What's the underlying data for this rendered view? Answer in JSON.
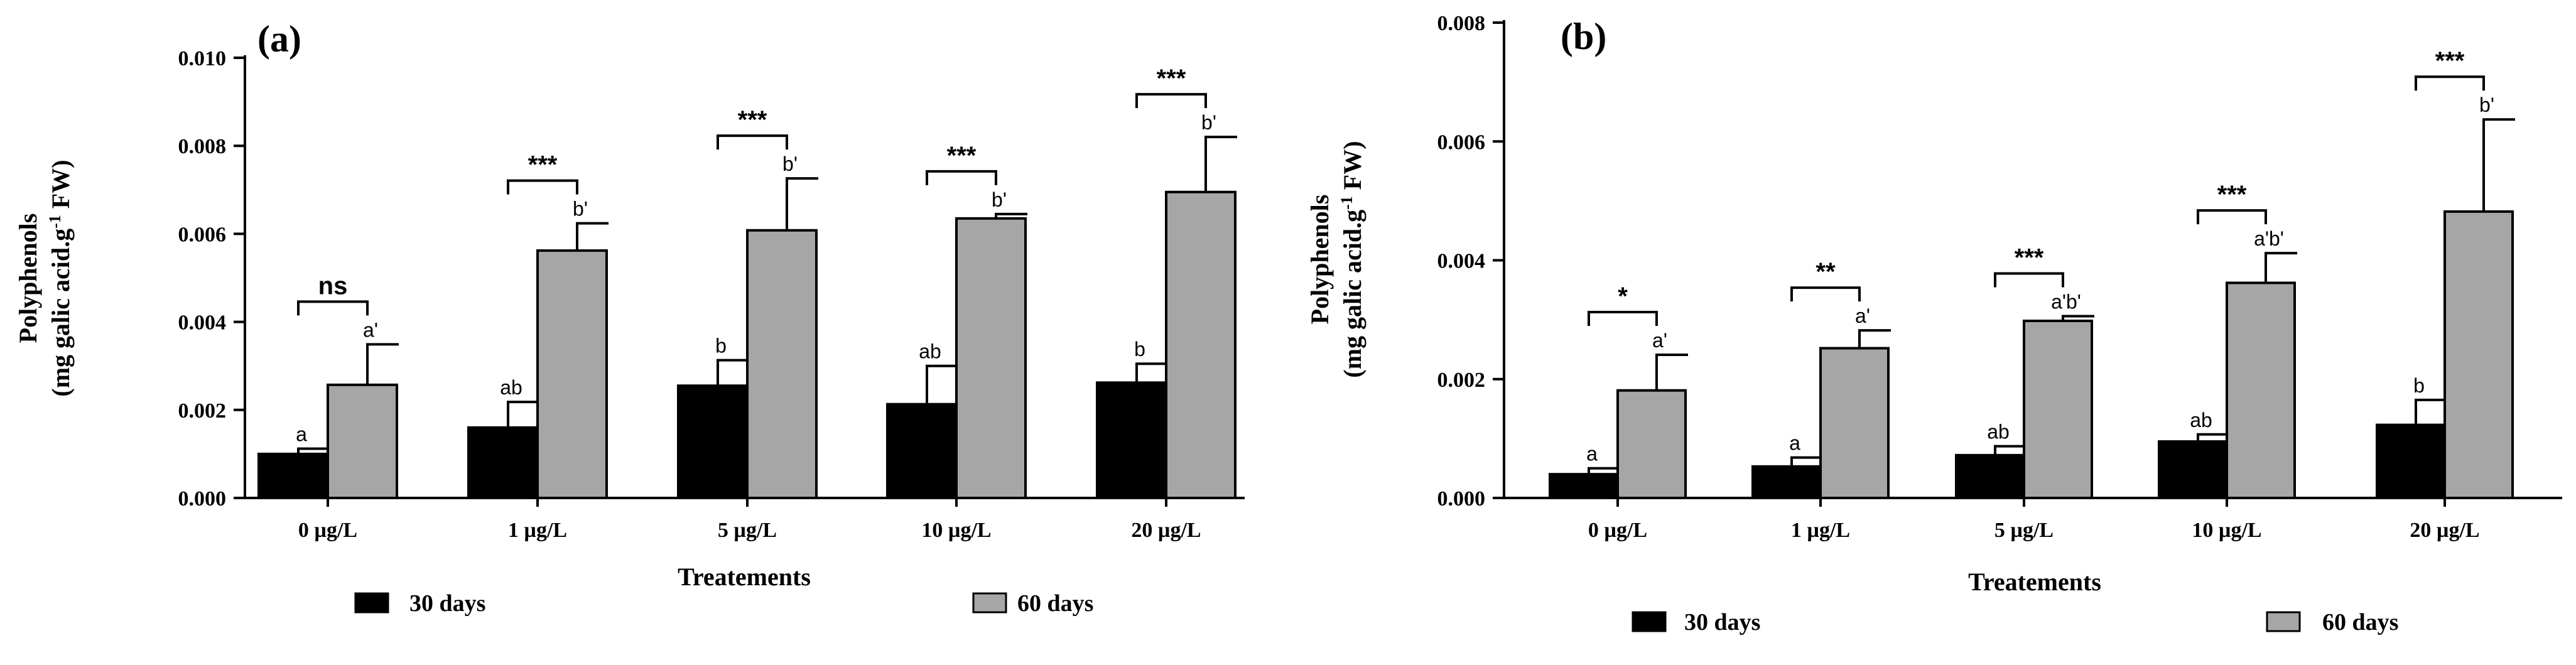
{
  "chart_data": [
    {
      "panel_label": "(a)",
      "type": "bar",
      "categories": [
        "0 µg/L",
        "1 µg/L",
        "5 µg/L",
        "10 µg/L",
        "20 µg/L"
      ],
      "xlabel": "Treatements",
      "ylabel_line1": "Polyphenols",
      "ylabel_line2": "(mg galic acid.g",
      "ylabel_sup": "-1",
      "ylabel_tail": " FW)",
      "ylim": [
        0,
        0.01
      ],
      "yticks": [
        "0.000",
        "0.002",
        "0.004",
        "0.006",
        "0.008",
        "0.010"
      ],
      "series": [
        {
          "name": "30 days",
          "color": "#000000",
          "values": [
            0.001,
            0.0016,
            0.00255,
            0.00213,
            0.00262
          ],
          "errors": [
            0.00012,
            0.00058,
            0.00058,
            0.00087,
            0.00043
          ],
          "letters": [
            "a",
            "ab",
            "b",
            "ab",
            "b"
          ]
        },
        {
          "name": "60 days",
          "color": "#a6a6a6",
          "values": [
            0.00257,
            0.00562,
            0.00608,
            0.00635,
            0.00695
          ],
          "errors": [
            0.00092,
            0.00062,
            0.00118,
            0.0001,
            0.00125
          ],
          "letters": [
            "a'",
            "b'",
            "b'",
            "b'",
            "b'"
          ]
        }
      ],
      "significance": [
        "ns",
        "***",
        "***",
        "***",
        "***"
      ]
    },
    {
      "panel_label": "(b)",
      "type": "bar",
      "categories": [
        "0 µg/L",
        "1 µg/L",
        "5 µg/L",
        "10 µg/L",
        "20 µg/L"
      ],
      "xlabel": "Treatements",
      "ylabel_line1": "Polyphenols",
      "ylabel_line2": "(mg galic acid.g",
      "ylabel_sup": "-1",
      "ylabel_tail": " FW)",
      "ylim": [
        0,
        0.008
      ],
      "yticks": [
        "0.000",
        "0.002",
        "0.004",
        "0.006",
        "0.008"
      ],
      "series": [
        {
          "name": "30 days",
          "color": "#000000",
          "values": [
            0.0004,
            0.00053,
            0.00072,
            0.00095,
            0.00123
          ],
          "errors": [
            0.0001,
            0.00015,
            0.00015,
            0.00012,
            0.00042
          ],
          "letters": [
            "a",
            "a",
            "ab",
            "ab",
            "b"
          ]
        },
        {
          "name": "60 days",
          "color": "#a6a6a6",
          "values": [
            0.00181,
            0.00252,
            0.00298,
            0.00362,
            0.00482
          ],
          "errors": [
            0.0006,
            0.0003,
            8e-05,
            0.0005,
            0.00155
          ],
          "letters": [
            "a'",
            "a'",
            "a'b'",
            "a'b'",
            "b'"
          ]
        }
      ],
      "significance": [
        "*",
        "**",
        "***",
        "***",
        "***"
      ]
    }
  ]
}
